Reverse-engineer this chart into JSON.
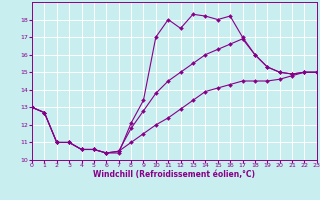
{
  "xlabel": "Windchill (Refroidissement éolien,°C)",
  "bg_color": "#c8eef0",
  "grid_color": "#ffffff",
  "line_color": "#880088",
  "xlim": [
    0,
    23
  ],
  "ylim": [
    10,
    19
  ],
  "yticks": [
    10,
    11,
    12,
    13,
    14,
    15,
    16,
    17,
    18
  ],
  "xticks": [
    0,
    1,
    2,
    3,
    4,
    5,
    6,
    7,
    8,
    9,
    10,
    11,
    12,
    13,
    14,
    15,
    16,
    17,
    18,
    19,
    20,
    21,
    22,
    23
  ],
  "line_upper_x": [
    0,
    1,
    2,
    3,
    4,
    5,
    6,
    7,
    8,
    9,
    10,
    11,
    12,
    13,
    14,
    15,
    16,
    17,
    18,
    19,
    20,
    21,
    22,
    23
  ],
  "line_upper_y": [
    13.0,
    12.7,
    11.0,
    11.0,
    10.6,
    10.6,
    10.4,
    10.4,
    12.1,
    13.4,
    17.0,
    18.0,
    17.5,
    18.3,
    18.2,
    18.0,
    18.2,
    17.0,
    16.0,
    15.3,
    15.0,
    14.9,
    15.0,
    15.0
  ],
  "line_mid_x": [
    0,
    1,
    2,
    3,
    4,
    5,
    6,
    7,
    8,
    9,
    10,
    11,
    12,
    13,
    14,
    15,
    16,
    17,
    18,
    19,
    20,
    21,
    22,
    23
  ],
  "line_mid_y": [
    13.0,
    12.7,
    11.0,
    11.0,
    10.6,
    10.6,
    10.4,
    10.5,
    11.8,
    12.8,
    13.8,
    14.5,
    15.0,
    15.5,
    16.0,
    16.3,
    16.6,
    16.9,
    16.0,
    15.3,
    15.0,
    14.9,
    15.0,
    15.0
  ],
  "line_lower_x": [
    0,
    1,
    2,
    3,
    4,
    5,
    6,
    7,
    8,
    9,
    10,
    11,
    12,
    13,
    14,
    15,
    16,
    17,
    18,
    19,
    20,
    21,
    22,
    23
  ],
  "line_lower_y": [
    13.0,
    12.7,
    11.0,
    11.0,
    10.6,
    10.6,
    10.4,
    10.5,
    11.0,
    11.5,
    12.0,
    12.4,
    12.9,
    13.4,
    13.9,
    14.1,
    14.3,
    14.5,
    14.5,
    14.5,
    14.6,
    14.8,
    15.0,
    15.0
  ]
}
